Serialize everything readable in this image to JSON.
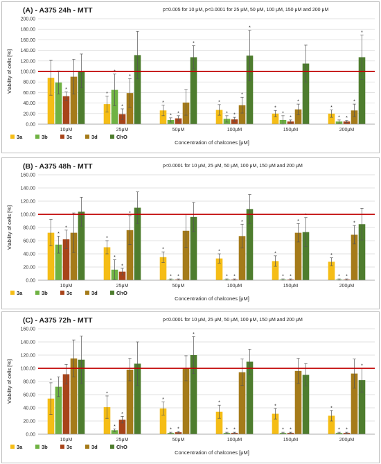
{
  "colors": {
    "3a": "#f5bd16",
    "3b": "#6fb243",
    "3c": "#a8441a",
    "3d": "#a57b1a",
    "ChO": "#4e7d2e",
    "reference_line": "#c00000",
    "grid": "#d9d9d9",
    "error_bar": "#555555"
  },
  "chart_data": [
    {
      "type": "bar",
      "title": "(A) - A375 24h - MTT",
      "note": "p=0.005 for 10 μM, p<0.0001 for 25 μM, 50 μM, 100 μM, 150 μM and 200 μM",
      "xlabel": "Concentration of chalcones [μM]",
      "ylabel": "Viability of cells [%]",
      "ylim": [
        0,
        200
      ],
      "yticks": [
        "0.00",
        "20.00",
        "40.00",
        "60.00",
        "80.00",
        "100.00",
        "120.00",
        "140.00",
        "160.00",
        "180.00",
        "200.00"
      ],
      "ytick_values": [
        0,
        20,
        40,
        60,
        80,
        100,
        120,
        140,
        160,
        180,
        200
      ],
      "reference_line": 100,
      "legend_position": "bottom-left",
      "categories": [
        "10μM",
        "25μM",
        "50μM",
        "100μM",
        "150μM",
        "200μM"
      ],
      "series": [
        {
          "name": "3a",
          "values": [
            88,
            38,
            26,
            27,
            20,
            20
          ],
          "errors": [
            33,
            15,
            10,
            10,
            6,
            7
          ],
          "significant": [
            false,
            true,
            true,
            true,
            true,
            true
          ]
        },
        {
          "name": "3b",
          "values": [
            79,
            65,
            8,
            10,
            8,
            5
          ],
          "errors": [
            22,
            30,
            4,
            6,
            8,
            3
          ],
          "significant": [
            false,
            true,
            true,
            true,
            true,
            true
          ]
        },
        {
          "name": "3c",
          "values": [
            53,
            19,
            11,
            9,
            5,
            5
          ],
          "errors": [
            8,
            10,
            5,
            4,
            3,
            2
          ],
          "significant": [
            true,
            true,
            true,
            true,
            true,
            true
          ]
        },
        {
          "name": "3d",
          "values": [
            90,
            59,
            41,
            36,
            28,
            26
          ],
          "errors": [
            33,
            27,
            24,
            15,
            10,
            12
          ],
          "significant": [
            false,
            true,
            false,
            true,
            true,
            true
          ]
        },
        {
          "name": "ChO",
          "values": [
            101,
            131,
            127,
            130,
            115,
            127
          ],
          "errors": [
            32,
            45,
            22,
            48,
            35,
            42
          ],
          "significant": [
            false,
            false,
            true,
            true,
            false,
            true
          ]
        }
      ]
    },
    {
      "type": "bar",
      "title": "(B) - A375 48h - MTT",
      "note": "p<0.0001 for 10 μM, 25 μM, 50 μM, 100 μM, 150 μM and 200 μM",
      "xlabel": "Concentration of chalcones [μM]",
      "ylabel": "Viability of cells [%]",
      "ylim": [
        0,
        160
      ],
      "yticks": [
        "0.00",
        "20.00",
        "40.00",
        "60.00",
        "80.00",
        "100.00",
        "120.00",
        "140.00",
        "160.00"
      ],
      "ytick_values": [
        0,
        20,
        40,
        60,
        80,
        100,
        120,
        140,
        160
      ],
      "reference_line": 100,
      "legend_position": "bottom-left",
      "categories": [
        "10μM",
        "25μM",
        "50μM",
        "100μM",
        "150μM",
        "200μM"
      ],
      "series": [
        {
          "name": "3a",
          "values": [
            72,
            50,
            35,
            33,
            29,
            28
          ],
          "errors": [
            20,
            10,
            8,
            7,
            8,
            6
          ],
          "significant": [
            false,
            true,
            true,
            true,
            true,
            true
          ]
        },
        {
          "name": "3b",
          "values": [
            54,
            16,
            1,
            1,
            1,
            1
          ],
          "errors": [
            13,
            15,
            1,
            1,
            1,
            1
          ],
          "significant": [
            true,
            true,
            true,
            true,
            true,
            true
          ]
        },
        {
          "name": "3c",
          "values": [
            62,
            13,
            1,
            1,
            1,
            1
          ],
          "errors": [
            14,
            5,
            1,
            1,
            1,
            1
          ],
          "significant": [
            true,
            true,
            true,
            true,
            true,
            true
          ]
        },
        {
          "name": "3d",
          "values": [
            72,
            76,
            75,
            67,
            72,
            69
          ],
          "errors": [
            30,
            22,
            25,
            18,
            14,
            14
          ],
          "significant": [
            false,
            true,
            false,
            true,
            true,
            true
          ]
        },
        {
          "name": "ChO",
          "values": [
            104,
            110,
            96,
            108,
            73,
            85
          ],
          "errors": [
            22,
            24,
            22,
            22,
            22,
            24
          ],
          "significant": [
            false,
            false,
            false,
            false,
            true,
            false
          ]
        }
      ]
    },
    {
      "type": "bar",
      "title": "(C) - A375 72h - MTT",
      "note": "p<0.0001 for 10 μM, 25 μM, 50 μM, 100 μM, 150 μM and 200 μM",
      "xlabel": "Concentration of chalcones [μM]",
      "ylabel": "Viability of cells [%]",
      "ylim": [
        0,
        160
      ],
      "yticks": [
        "0.00",
        "20.00",
        "40.00",
        "60.00",
        "80.00",
        "100.00",
        "120.00",
        "140.00",
        "160.00"
      ],
      "ytick_values": [
        0,
        20,
        40,
        60,
        80,
        100,
        120,
        140,
        160
      ],
      "reference_line": 100,
      "legend_position": "bottom-left",
      "categories": [
        "10μM",
        "25μM",
        "50μM",
        "100μM",
        "150μM",
        "200μM"
      ],
      "series": [
        {
          "name": "3a",
          "values": [
            54,
            41,
            39,
            34,
            31,
            28
          ],
          "errors": [
            24,
            17,
            10,
            10,
            8,
            8
          ],
          "significant": [
            true,
            true,
            true,
            true,
            true,
            true
          ]
        },
        {
          "name": "3b",
          "values": [
            72,
            6,
            2,
            2,
            2,
            2
          ],
          "errors": [
            15,
            2,
            1,
            1,
            1,
            1
          ],
          "significant": [
            false,
            true,
            true,
            true,
            true,
            true
          ]
        },
        {
          "name": "3c",
          "values": [
            91,
            22,
            3,
            2,
            2,
            2
          ],
          "errors": [
            15,
            5,
            1,
            1,
            1,
            1
          ],
          "significant": [
            false,
            true,
            true,
            true,
            true,
            true
          ]
        },
        {
          "name": "3d",
          "values": [
            115,
            98,
            100,
            94,
            96,
            92
          ],
          "errors": [
            28,
            17,
            19,
            20,
            19,
            22
          ],
          "significant": [
            false,
            false,
            false,
            false,
            false,
            false
          ]
        },
        {
          "name": "ChO",
          "values": [
            113,
            107,
            120,
            110,
            90,
            82
          ],
          "errors": [
            36,
            33,
            28,
            19,
            17,
            18
          ],
          "significant": [
            false,
            false,
            true,
            false,
            false,
            true
          ]
        }
      ]
    }
  ]
}
